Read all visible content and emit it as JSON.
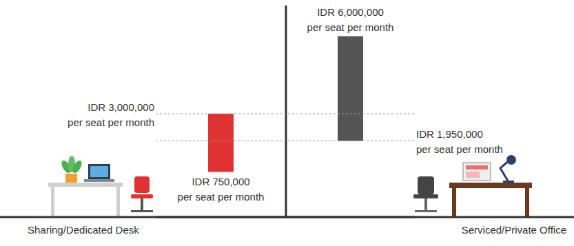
{
  "chart_data": {
    "type": "bar",
    "categories": [
      "Sharing/Dedicated Desk",
      "Serviced/Private Office"
    ],
    "values": [
      [
        750000,
        3000000
      ],
      [
        1950000,
        6000000
      ]
    ],
    "value_labels": [
      [
        "IDR 750,000\nper seat per month",
        "IDR 3,000,000\nper seat per month"
      ],
      [
        "IDR 1,950,000\nper seat per month",
        "IDR 6,000,000\nper seat per month"
      ]
    ],
    "colors": [
      "#e03232",
      "#555555"
    ],
    "ylim": [
      -1000000,
      7000000
    ],
    "tick_labels": false,
    "data_labels": true,
    "grid": false
  }
}
